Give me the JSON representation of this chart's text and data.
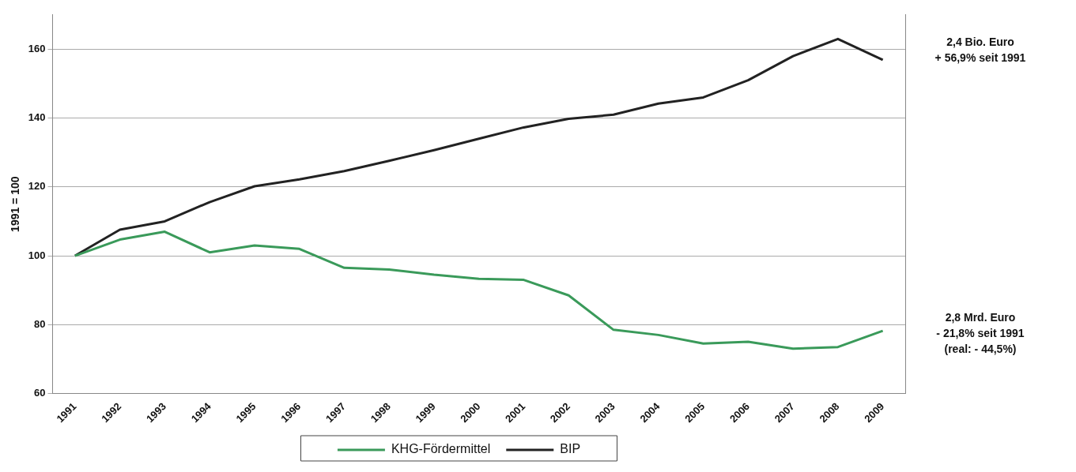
{
  "chart_data": {
    "type": "line",
    "categories": [
      "1991",
      "1992",
      "1993",
      "1994",
      "1995",
      "1996",
      "1997",
      "1998",
      "1999",
      "2000",
      "2001",
      "2002",
      "2003",
      "2004",
      "2005",
      "2006",
      "2007",
      "2008",
      "2009"
    ],
    "series": [
      {
        "name": "KHG-Fördermittel",
        "color": "#3a9a5a",
        "values": [
          100,
          104.7,
          107,
          101,
          103,
          102,
          96.5,
          96,
          94.5,
          93.3,
          93,
          88.5,
          78.5,
          77,
          74.5,
          75,
          73,
          73.5,
          78.2
        ]
      },
      {
        "name": "BIP",
        "color": "#222222",
        "values": [
          100,
          107.6,
          110,
          115.6,
          120.2,
          122.2,
          124.6,
          127.6,
          130.7,
          134,
          137.3,
          139.8,
          141,
          144.2,
          146,
          151,
          158,
          163,
          156.9
        ]
      }
    ],
    "ylabel": "1991 = 100",
    "ylim": [
      60,
      170
    ],
    "yticks": [
      60,
      80,
      100,
      120,
      140,
      160
    ],
    "grid": "y",
    "legend": "bottom",
    "marker": "none",
    "line_style": "solid",
    "annotations": [
      "2,4 Bio. Euro\n+ 56,9% seit 1991",
      "2,8 Mrd. Euro\n- 21,8% seit 1991\n(real: - 44,5%)"
    ]
  }
}
